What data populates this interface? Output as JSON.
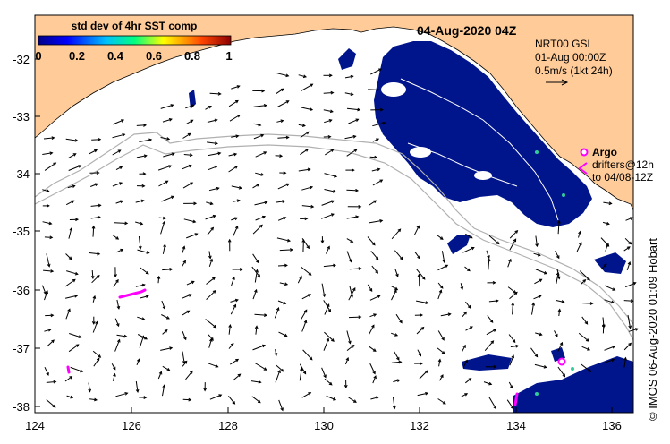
{
  "map": {
    "date_title": "04-Aug-2020 04Z",
    "colorbar": {
      "title": "std dev of 4hr SST comp",
      "ticks": [
        "0",
        "0.2",
        "0.4",
        "0.6",
        "0.8",
        "1"
      ],
      "colors": [
        "#00008b",
        "#0000ff",
        "#00bfff",
        "#00ff7f",
        "#ffff00",
        "#ff4500",
        "#8b0000"
      ]
    },
    "current_info": {
      "line1": "NRT00 GSL",
      "line2": "01-Aug 00:00Z",
      "line3": "0.5m/s (1kt 24h)"
    },
    "argo_label": "Argo",
    "drifter_line1": "drifters@12h",
    "drifter_line2": "to 04/08-12Z",
    "lat_ticks": [
      "-32",
      "-33",
      "-34",
      "-35",
      "-36",
      "-37",
      "-38"
    ],
    "lon_ticks": [
      "124",
      "126",
      "128",
      "130",
      "132",
      "134",
      "136"
    ],
    "credit": "© IMOS 06-Aug-2020 01:09 Hobart",
    "colors": {
      "land": "#ffcc99",
      "sea": "#ffffff",
      "sst_deep_blue": "#00148c",
      "drifter": "#ff00ff",
      "bathymetry": "#b0b0b0"
    }
  }
}
